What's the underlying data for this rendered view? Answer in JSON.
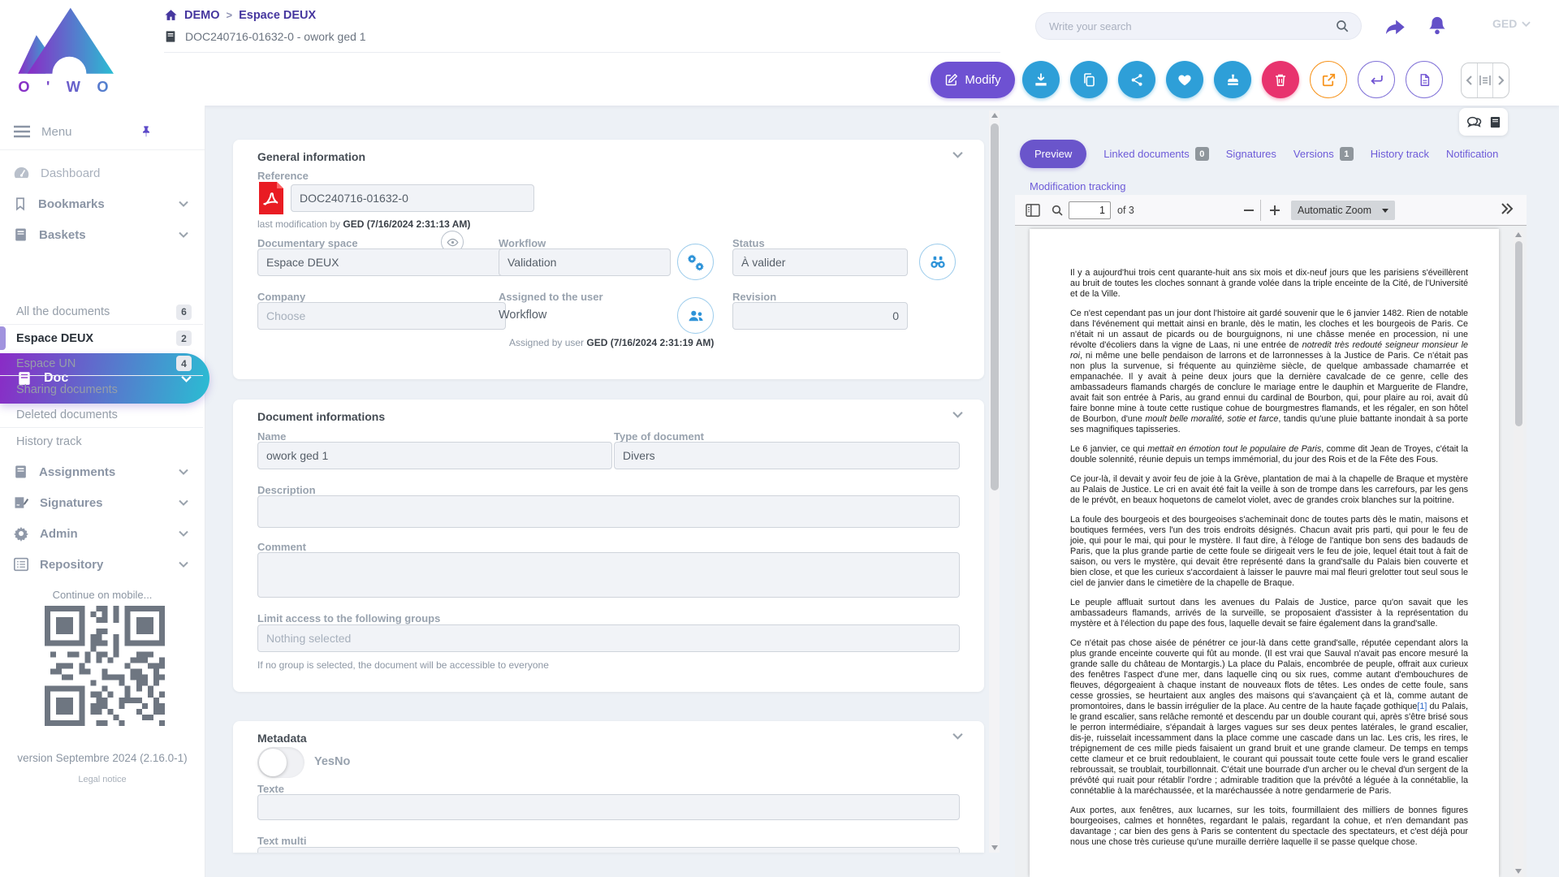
{
  "colors": {
    "accent_purple": "#6e51d2",
    "brand_gradient_start": "#8a2bc6",
    "brand_gradient_end": "#2abdd3",
    "action_blue": "#2e9fd8",
    "danger_pink": "#e8336e",
    "warning_orange": "#f7941d",
    "breadcrumb_purple": "#46379f",
    "pdf_link_blue": "#2a66c8"
  },
  "header": {
    "logo_text": "O ' W O R K",
    "breadcrumb": {
      "home": "DEMO",
      "separator": ">",
      "section": "Espace DEUX"
    },
    "doc_title": "DOC240716-01632-0 - owork ged 1",
    "search_placeholder": "Write your search",
    "user_label": "GED",
    "modify_label": "Modify"
  },
  "sidebar": {
    "menu_label": "Menu",
    "items": [
      {
        "label": "Dashboard"
      },
      {
        "label": "Bookmarks"
      },
      {
        "label": "Baskets"
      }
    ],
    "active_item": {
      "label": "Doc"
    },
    "doc_items": [
      {
        "label": "All the documents",
        "count": "6"
      },
      {
        "label": "Espace DEUX",
        "count": "2"
      },
      {
        "label": "Espace UN",
        "count": "4"
      },
      {
        "label": "Sharing documents"
      },
      {
        "label": "Deleted documents"
      },
      {
        "label": "History track"
      }
    ],
    "lower_items": [
      {
        "label": "Assignments"
      },
      {
        "label": "Signatures"
      },
      {
        "label": "Admin"
      },
      {
        "label": "Repository"
      }
    ],
    "mobile_text": "Continue on mobile...",
    "version": "version Septembre 2024 (2.16.0-1)",
    "legal": "Legal notice"
  },
  "general": {
    "title": "General information",
    "reference_label": "Reference",
    "reference_value": "DOC240716-01632-0",
    "last_modification_prefix": "last modification by",
    "last_modification_value": "GED (7/16/2024 2:31:13 AM)",
    "documentary_space_label": "Documentary space",
    "documentary_space_value": "Espace DEUX",
    "workflow_label": "Workflow",
    "workflow_value": "Validation",
    "status_label": "Status",
    "status_value": "À valider",
    "company_label": "Company",
    "company_placeholder": "Choose",
    "assigned_label": "Assigned to the user",
    "assigned_value": "Workflow",
    "assigned_by_prefix": "Assigned by user",
    "assigned_by_value": "GED (7/16/2024 2:31:19 AM)",
    "revision_label": "Revision",
    "revision_value": "0"
  },
  "docinfo": {
    "title": "Document informations",
    "name_label": "Name",
    "name_value": "owork ged 1",
    "type_label": "Type of document",
    "type_value": "Divers",
    "description_label": "Description",
    "comment_label": "Comment",
    "groups_label": "Limit access to the following groups",
    "groups_placeholder": "Nothing selected",
    "groups_help": "If no group is selected, the document will be accessible to everyone"
  },
  "metadata": {
    "title": "Metadata",
    "toggle_label": "YesNo",
    "texte_label": "Texte",
    "textmulti_label": "Text multi"
  },
  "tabs": {
    "active": "Preview",
    "items": [
      {
        "label": "Linked documents",
        "badge": "0"
      },
      {
        "label": "Signatures"
      },
      {
        "label": "Versions",
        "badge": "1"
      },
      {
        "label": "History track"
      },
      {
        "label": "Notification"
      },
      {
        "label": "Modification tracking"
      }
    ]
  },
  "viewer": {
    "page_value": "1",
    "page_of": "of 3",
    "zoom_value": "Automatic Zoom"
  },
  "pdf": {
    "paragraphs": [
      [
        {
          "t": "Il y a aujourd'hui trois cent quarante-huit ans six mois et dix-neuf jours que les parisiens s'éveillèrent au bruit de toutes les cloches sonnant à grande volée dans la triple enceinte de la Cité, de l'Université et de la Ville."
        }
      ],
      [
        {
          "t": "Ce n'est cependant pas un jour dont l'histoire ait gardé souvenir que le 6 janvier 1482. Rien de notable dans l'événement qui mettait ainsi en branle, dès le matin, les cloches et les bourgeois de Paris. Ce n'était ni un assaut de picards ou de bourguignons, ni une châsse menée en procession, ni une révolte d'écoliers dans la vigne de Laas, ni une entrée de "
        },
        {
          "t": "notredit très redouté seigneur monsieur le roi",
          "s": "i"
        },
        {
          "t": ", ni même une belle pendaison de larrons et de larronnesses à la Justice de Paris. Ce n'était pas non plus la survenue, si fréquente au quinzième siècle, de quelque ambassade chamarrée et empanachée. Il y avait à peine deux jours que la dernière cavalcade de ce genre, celle des ambassadeurs flamands chargés de conclure le mariage entre le dauphin et Marguerite de Flandre, avait fait son entrée à Paris, au grand ennui du cardinal de Bourbon, qui, pour plaire au roi, avait dû faire bonne mine à toute cette rustique cohue de bourgmestres flamands, et les régaler, en son hôtel de Bourbon, d'une "
        },
        {
          "t": "moult belle moralité, sotie et farce",
          "s": "i"
        },
        {
          "t": ", tandis qu'une pluie battante inondait à sa porte ses magnifiques tapisseries."
        }
      ],
      [
        {
          "t": "Le 6 janvier, ce qui "
        },
        {
          "t": "mettait en émotion tout le populaire de Paris",
          "s": "i"
        },
        {
          "t": ", comme dit Jean de Troyes, c'était la double solennité, réunie depuis un temps immémorial, du jour des Rois et de la Fête des Fous."
        }
      ],
      [
        {
          "t": "Ce jour-là, il devait y avoir feu de joie à la Grève, plantation de mai à la chapelle de Braque et mystère au Palais de Justice. Le cri en avait été fait la veille à son de trompe dans les carrefours, par les gens de le prévôt, en beaux hoquetons de camelot violet, avec de grandes croix blanches sur la poitrine."
        }
      ],
      [
        {
          "t": "La foule des bourgeois et des bourgeoises s'acheminait donc de toutes parts dès le matin, maisons et boutiques fermées, vers l'un des trois endroits désignés. Chacun avait pris parti, qui pour le feu de joie, qui pour le mai, qui pour le mystère. Il faut dire, à l'éloge de l'antique bon sens des badauds de Paris, que la plus grande partie de cette foule se dirigeait vers le feu de joie, lequel était tout à fait de saison, ou vers le mystère, qui devait être représenté dans la grand'salle du Palais bien couverte et bien close, et que les curieux s'accordaient à laisser le pauvre mai mal fleuri grelotter tout seul sous le ciel de janvier dans le cimetière de la chapelle de Braque."
        }
      ],
      [
        {
          "t": "Le peuple affluait surtout dans les avenues du Palais de Justice, parce qu'on savait que les ambassadeurs flamands, arrivés de la surveille, se proposaient d'assister à la représentation du mystère et à l'élection du pape des fous, laquelle devait se faire également dans la grand'salle."
        }
      ],
      [
        {
          "t": "Ce n'était pas chose aisée de pénétrer ce jour-là dans cette grand'salle, réputée cependant alors la plus grande enceinte couverte qui fût au monde. (Il est vrai que Sauval n'avait pas encore mesuré la grande salle du château de Montargis.) La place du Palais, encombrée de peuple, offrait aux curieux des fenêtres l'aspect d'une mer, dans laquelle cinq ou six rues, comme autant d'embouchures de fleuves, dégorgeaient à chaque instant de nouveaux flots de têtes. Les ondes de cette foule, sans cesse grossies, se heurtaient aux angles des maisons qui s'avançaient çà et là, comme autant de promontoires, dans le bassin irrégulier de la place. Au centre de la haute façade gothique"
        },
        {
          "t": "[1]",
          "s": "link"
        },
        {
          "t": " du Palais, le grand escalier, sans relâche remonté et descendu par un double courant qui, après s'être brisé sous le perron intermédiaire, s'épandait à larges vagues sur ses deux pentes latérales, le grand escalier, dis-je, ruisselait incessamment dans la place comme une cascade dans un lac. Les cris, les rires, le trépignement de ces mille pieds faisaient un grand bruit et une grande clameur. De temps en temps cette clameur et ce bruit redoublaient, le courant qui poussait toute cette foule vers le grand escalier rebroussait, se troublait, tourbillonnait. C'était une bourrade d'un archer ou le cheval d'un sergent de la prévôté qui ruait pour rétablir l'ordre ; admirable tradition que la prévôté a léguée à la connétablie, la connétablie à la maréchaussée, et la maréchaussée à notre gendarmerie de Paris."
        }
      ],
      [
        {
          "t": "Aux portes, aux fenêtres, aux lucarnes, sur les toits, fourmillaient des milliers de bonnes figures bourgeoises, calmes et honnêtes, regardant le palais, regardant la cohue, et n'en demandant pas davantage ; car bien des gens à Paris se contentent du spectacle des spectateurs, et c'est déjà pour nous une chose très curieuse qu'une muraille derrière laquelle il se passe quelque chose."
        }
      ]
    ]
  }
}
